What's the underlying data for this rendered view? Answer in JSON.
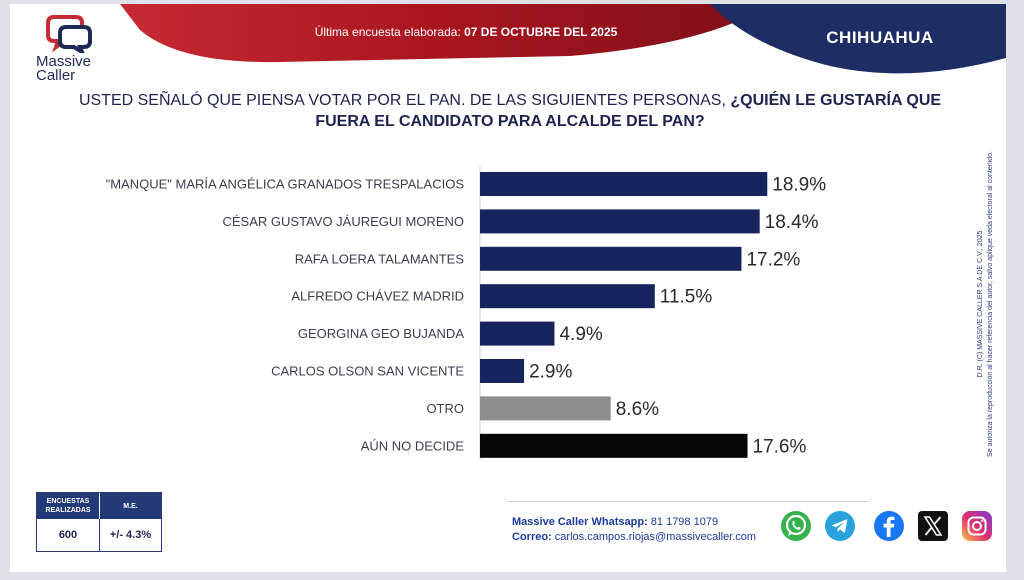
{
  "header": {
    "logo_line1": "Massive",
    "logo_line2": "Caller",
    "subhead_label": "Última encuesta elaborada:",
    "subhead_date": "07 DE OCTUBRE DEL 2025",
    "region": "CHIHUAHUA"
  },
  "question": {
    "part1": "USTED SEÑALÓ QUE PIENSA VOTAR POR EL PAN. DE LAS SIGUIENTES PERSONAS, ",
    "part2": "¿QUIÉN LE GUSTARÍA QUE FUERA EL CANDIDATO PARA ALCALDE DEL PAN?"
  },
  "chart_data": {
    "type": "bar",
    "orientation": "horizontal",
    "categories": [
      "\"MANQUE\" MARÍA ANGÉLICA GRANADOS TRESPALACIOS",
      "CÉSAR GUSTAVO JÁUREGUI MORENO",
      "RAFA LOERA TALAMANTES",
      "ALFREDO CHÁVEZ MADRID",
      "GEORGINA GEO BUJANDA",
      "CARLOS OLSON SAN VICENTE",
      "OTRO",
      "AÚN NO DECIDE"
    ],
    "values": [
      18.9,
      18.4,
      17.2,
      11.5,
      4.9,
      2.9,
      8.6,
      17.6
    ],
    "value_labels": [
      "18.9%",
      "18.4%",
      "17.2%",
      "11.5%",
      "4.9%",
      "2.9%",
      "8.6%",
      "17.6%"
    ],
    "bar_colors": [
      "#17255e",
      "#17255e",
      "#17255e",
      "#17255e",
      "#17255e",
      "#17255e",
      "#8e8e8e",
      "#050505"
    ],
    "xlim": [
      0,
      20
    ],
    "grid": false,
    "legend": "none"
  },
  "copyright": {
    "line1": "D.R. (C) MASSIVE CALLER S.A DE C.V., 2025",
    "line2": "Se autoriza la reproducción al hacer referencia del autor, salvo aplique veda electoral al contenido."
  },
  "stats": {
    "col1_header_a": "ENCUESTAS",
    "col1_header_b": "REALIZADAS",
    "col2_header": "M.E.",
    "col1_value": "600",
    "col2_value": "+/- 4.3%"
  },
  "contact": {
    "whatsapp_label": "Massive Caller Whatsapp:",
    "whatsapp_number": "81 1798 1079",
    "email_label": "Correo:",
    "email": "carlos.campos.riojas@massivecaller.com"
  },
  "social": [
    "whatsapp-icon",
    "telegram-icon",
    "facebook-icon",
    "x-icon",
    "instagram-icon"
  ],
  "colors": {
    "navy": "#17255e",
    "red": "#b51f2b",
    "banner_navy": "#1e2d63"
  }
}
